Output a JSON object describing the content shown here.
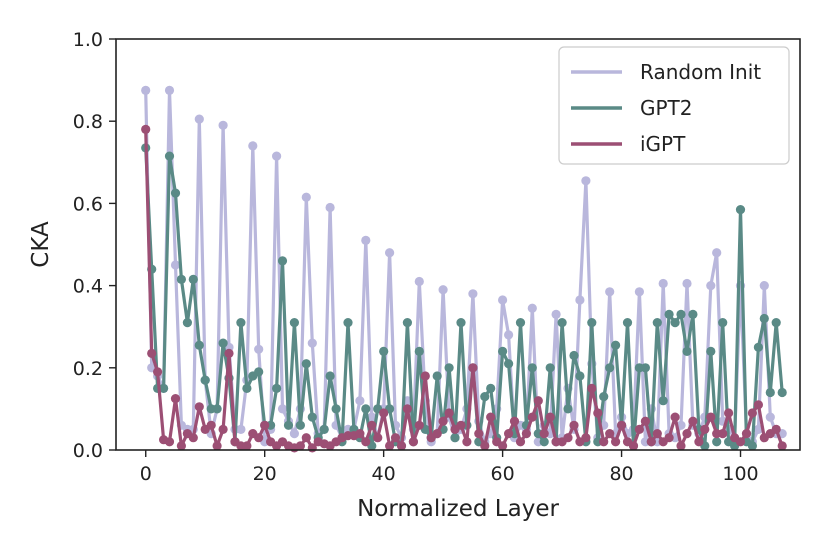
{
  "chart_data": {
    "type": "line",
    "title": "",
    "xlabel": "Normalized Layer",
    "ylabel": "CKA",
    "xlim": [
      -5,
      110
    ],
    "ylim": [
      0,
      1.0
    ],
    "xticks": [
      0,
      20,
      40,
      60,
      80,
      100
    ],
    "xtick_labels": [
      "0",
      "20",
      "40",
      "60",
      "80",
      "100"
    ],
    "yticks": [
      0.0,
      0.2,
      0.4,
      0.6,
      0.8,
      1.0
    ],
    "ytick_labels": [
      "0.0",
      "0.2",
      "0.4",
      "0.6",
      "0.8",
      "1.0"
    ],
    "grid": false,
    "legend_position": "top-right",
    "series": [
      {
        "name": "Random Init",
        "color": "#b9b7dc",
        "x": [
          0,
          1,
          2,
          3,
          4,
          5,
          6,
          7,
          8,
          9,
          10,
          11,
          12,
          13,
          14,
          15,
          16,
          17,
          18,
          19,
          20,
          21,
          22,
          23,
          24,
          25,
          26,
          27,
          28,
          29,
          30,
          31,
          32,
          33,
          34,
          35,
          36,
          37,
          38,
          39,
          40,
          41,
          42,
          43,
          44,
          45,
          46,
          47,
          48,
          49,
          50,
          51,
          52,
          53,
          54,
          55,
          56,
          57,
          58,
          59,
          60,
          61,
          62,
          63,
          64,
          65,
          66,
          67,
          68,
          69,
          70,
          71,
          72,
          73,
          74,
          75,
          76,
          77,
          78,
          79,
          80,
          81,
          82,
          83,
          84,
          85,
          86,
          87,
          88,
          89,
          90,
          91,
          92,
          93,
          94,
          95,
          96,
          97,
          98,
          99,
          100,
          101,
          102,
          103,
          104,
          105,
          106,
          107
        ],
        "values": [
          0.875,
          0.2,
          0.18,
          0.15,
          0.875,
          0.45,
          0.06,
          0.05,
          0.05,
          0.805,
          0.17,
          0.04,
          0.1,
          0.79,
          0.25,
          0.05,
          0.05,
          0.17,
          0.74,
          0.245,
          0.02,
          0.05,
          0.715,
          0.1,
          0.07,
          0.04,
          0.1,
          0.615,
          0.26,
          0.04,
          0.05,
          0.59,
          0.06,
          0.03,
          0.05,
          0.05,
          0.12,
          0.51,
          0.08,
          0.03,
          0.1,
          0.48,
          0.06,
          0.03,
          0.12,
          0.05,
          0.41,
          0.12,
          0.02,
          0.04,
          0.39,
          0.08,
          0.03,
          0.05,
          0.1,
          0.38,
          0.07,
          0.02,
          0.04,
          0.1,
          0.365,
          0.28,
          0.03,
          0.06,
          0.05,
          0.345,
          0.02,
          0.06,
          0.04,
          0.33,
          0.03,
          0.15,
          0.05,
          0.365,
          0.655,
          0.21,
          0.03,
          0.06,
          0.385,
          0.04,
          0.08,
          0.04,
          0.05,
          0.385,
          0.02,
          0.1,
          0.02,
          0.405,
          0.04,
          0.03,
          0.06,
          0.405,
          0.06,
          0.04,
          0.08,
          0.4,
          0.48,
          0.07,
          0.05,
          0.03,
          0.4,
          0.04,
          0.02,
          0.05,
          0.4,
          0.08,
          0.04,
          0.04
        ]
      },
      {
        "name": "GPT2",
        "color": "#5a8a86",
        "x": [
          0,
          1,
          2,
          3,
          4,
          5,
          6,
          7,
          8,
          9,
          10,
          11,
          12,
          13,
          14,
          15,
          16,
          17,
          18,
          19,
          20,
          21,
          22,
          23,
          24,
          25,
          26,
          27,
          28,
          29,
          30,
          31,
          32,
          33,
          34,
          35,
          36,
          37,
          38,
          39,
          40,
          41,
          42,
          43,
          44,
          45,
          46,
          47,
          48,
          49,
          50,
          51,
          52,
          53,
          54,
          55,
          56,
          57,
          58,
          59,
          60,
          61,
          62,
          63,
          64,
          65,
          66,
          67,
          68,
          69,
          70,
          71,
          72,
          73,
          74,
          75,
          76,
          77,
          78,
          79,
          80,
          81,
          82,
          83,
          84,
          85,
          86,
          87,
          88,
          89,
          90,
          91,
          92,
          93,
          94,
          95,
          96,
          97,
          98,
          99,
          100,
          101,
          102,
          103,
          104,
          105,
          106,
          107
        ],
        "values": [
          0.735,
          0.44,
          0.15,
          0.15,
          0.715,
          0.625,
          0.415,
          0.31,
          0.415,
          0.255,
          0.17,
          0.1,
          0.1,
          0.26,
          0.175,
          0.02,
          0.31,
          0.15,
          0.18,
          0.19,
          0.06,
          0.06,
          0.15,
          0.46,
          0.06,
          0.31,
          0.06,
          0.21,
          0.08,
          0.03,
          0.05,
          0.18,
          0.1,
          0.02,
          0.31,
          0.05,
          0.03,
          0.1,
          0.01,
          0.1,
          0.24,
          0.1,
          0.02,
          0.01,
          0.31,
          0.02,
          0.24,
          0.05,
          0.03,
          0.18,
          0.05,
          0.2,
          0.03,
          0.31,
          0.06,
          0.2,
          0.02,
          0.13,
          0.15,
          0.03,
          0.24,
          0.21,
          0.04,
          0.31,
          0.06,
          0.2,
          0.04,
          0.02,
          0.2,
          0.02,
          0.31,
          0.1,
          0.23,
          0.18,
          0.02,
          0.31,
          0.02,
          0.13,
          0.2,
          0.255,
          0.06,
          0.31,
          0.01,
          0.2,
          0.2,
          0.02,
          0.31,
          0.12,
          0.33,
          0.31,
          0.33,
          0.24,
          0.33,
          0.05,
          0.01,
          0.24,
          0.02,
          0.31,
          0.02,
          0.01,
          0.585,
          0.02,
          0.01,
          0.25,
          0.32,
          0.14,
          0.31,
          0.14
        ]
      },
      {
        "name": "iGPT",
        "color": "#9c4f74",
        "x": [
          0,
          1,
          2,
          3,
          4,
          5,
          6,
          7,
          8,
          9,
          10,
          11,
          12,
          13,
          14,
          15,
          16,
          17,
          18,
          19,
          20,
          21,
          22,
          23,
          24,
          25,
          26,
          27,
          28,
          29,
          30,
          31,
          32,
          33,
          34,
          35,
          36,
          37,
          38,
          39,
          40,
          41,
          42,
          43,
          44,
          45,
          46,
          47,
          48,
          49,
          50,
          51,
          52,
          53,
          54,
          55,
          56,
          57,
          58,
          59,
          60,
          61,
          62,
          63,
          64,
          65,
          66,
          67,
          68,
          69,
          70,
          71,
          72,
          73,
          74,
          75,
          76,
          77,
          78,
          79,
          80,
          81,
          82,
          83,
          84,
          85,
          86,
          87,
          88,
          89,
          90,
          91,
          92,
          93,
          94,
          95,
          96,
          97,
          98,
          99,
          100,
          101,
          102,
          103,
          104,
          105,
          106,
          107
        ],
        "values": [
          0.78,
          0.235,
          0.19,
          0.025,
          0.02,
          0.125,
          0.01,
          0.04,
          0.03,
          0.105,
          0.05,
          0.06,
          0.01,
          0.05,
          0.235,
          0.02,
          0.01,
          0.01,
          0.04,
          0.03,
          0.06,
          0.02,
          0.01,
          0.02,
          0.01,
          0.005,
          0.01,
          0.03,
          0.005,
          0.02,
          0.015,
          0.01,
          0.02,
          0.03,
          0.035,
          0.035,
          0.04,
          0.02,
          0.06,
          0.03,
          0.09,
          0.01,
          0.03,
          0.01,
          0.1,
          0.02,
          0.06,
          0.18,
          0.03,
          0.04,
          0.07,
          0.09,
          0.05,
          0.06,
          0.02,
          0.2,
          0.04,
          0.01,
          0.08,
          0.02,
          0.01,
          0.04,
          0.07,
          0.02,
          0.04,
          0.08,
          0.12,
          0.04,
          0.08,
          0.02,
          0.02,
          0.03,
          0.06,
          0.02,
          0.03,
          0.15,
          0.09,
          0.02,
          0.04,
          0.02,
          0.06,
          0.02,
          0.01,
          0.05,
          0.07,
          0.02,
          0.04,
          0.02,
          0.03,
          0.08,
          0.01,
          0.04,
          0.07,
          0.02,
          0.05,
          0.08,
          0.04,
          0.04,
          0.09,
          0.03,
          0.02,
          0.04,
          0.09,
          0.11,
          0.03,
          0.04,
          0.05,
          0.01
        ]
      }
    ]
  }
}
